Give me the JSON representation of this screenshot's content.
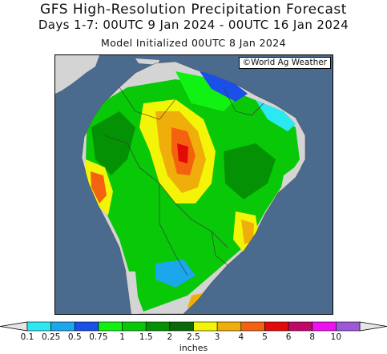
{
  "header": {
    "title": "GFS High-Resolution Precipitation Forecast",
    "subtitle": "Days 1-7: 00UTC 9 Jan 2024 - 00UTC 16 Jan 2024",
    "init_line": "Model Initialized 00UTC 8 Jan 2024"
  },
  "map": {
    "credit": "©World Ag Weather",
    "region": "South America",
    "ocean_color": "#4a6a8e",
    "land_color": "#d4d4d4"
  },
  "legend": {
    "unit_label": "inches",
    "ticks": [
      "0.1",
      "0.25",
      "0.5",
      "0.75",
      "1",
      "1.5",
      "2",
      "2.5",
      "3",
      "4",
      "5",
      "6",
      "8",
      "10"
    ],
    "colors": [
      "#2ce8f0",
      "#1ca6ec",
      "#1a4fe8",
      "#12f212",
      "#08c808",
      "#049204",
      "#0a6a0a",
      "#f4f408",
      "#f0ae0a",
      "#f46210",
      "#e40a0a",
      "#c00868",
      "#ee10ee",
      "#9c58d6"
    ],
    "end_color": "#e6e6e6"
  }
}
